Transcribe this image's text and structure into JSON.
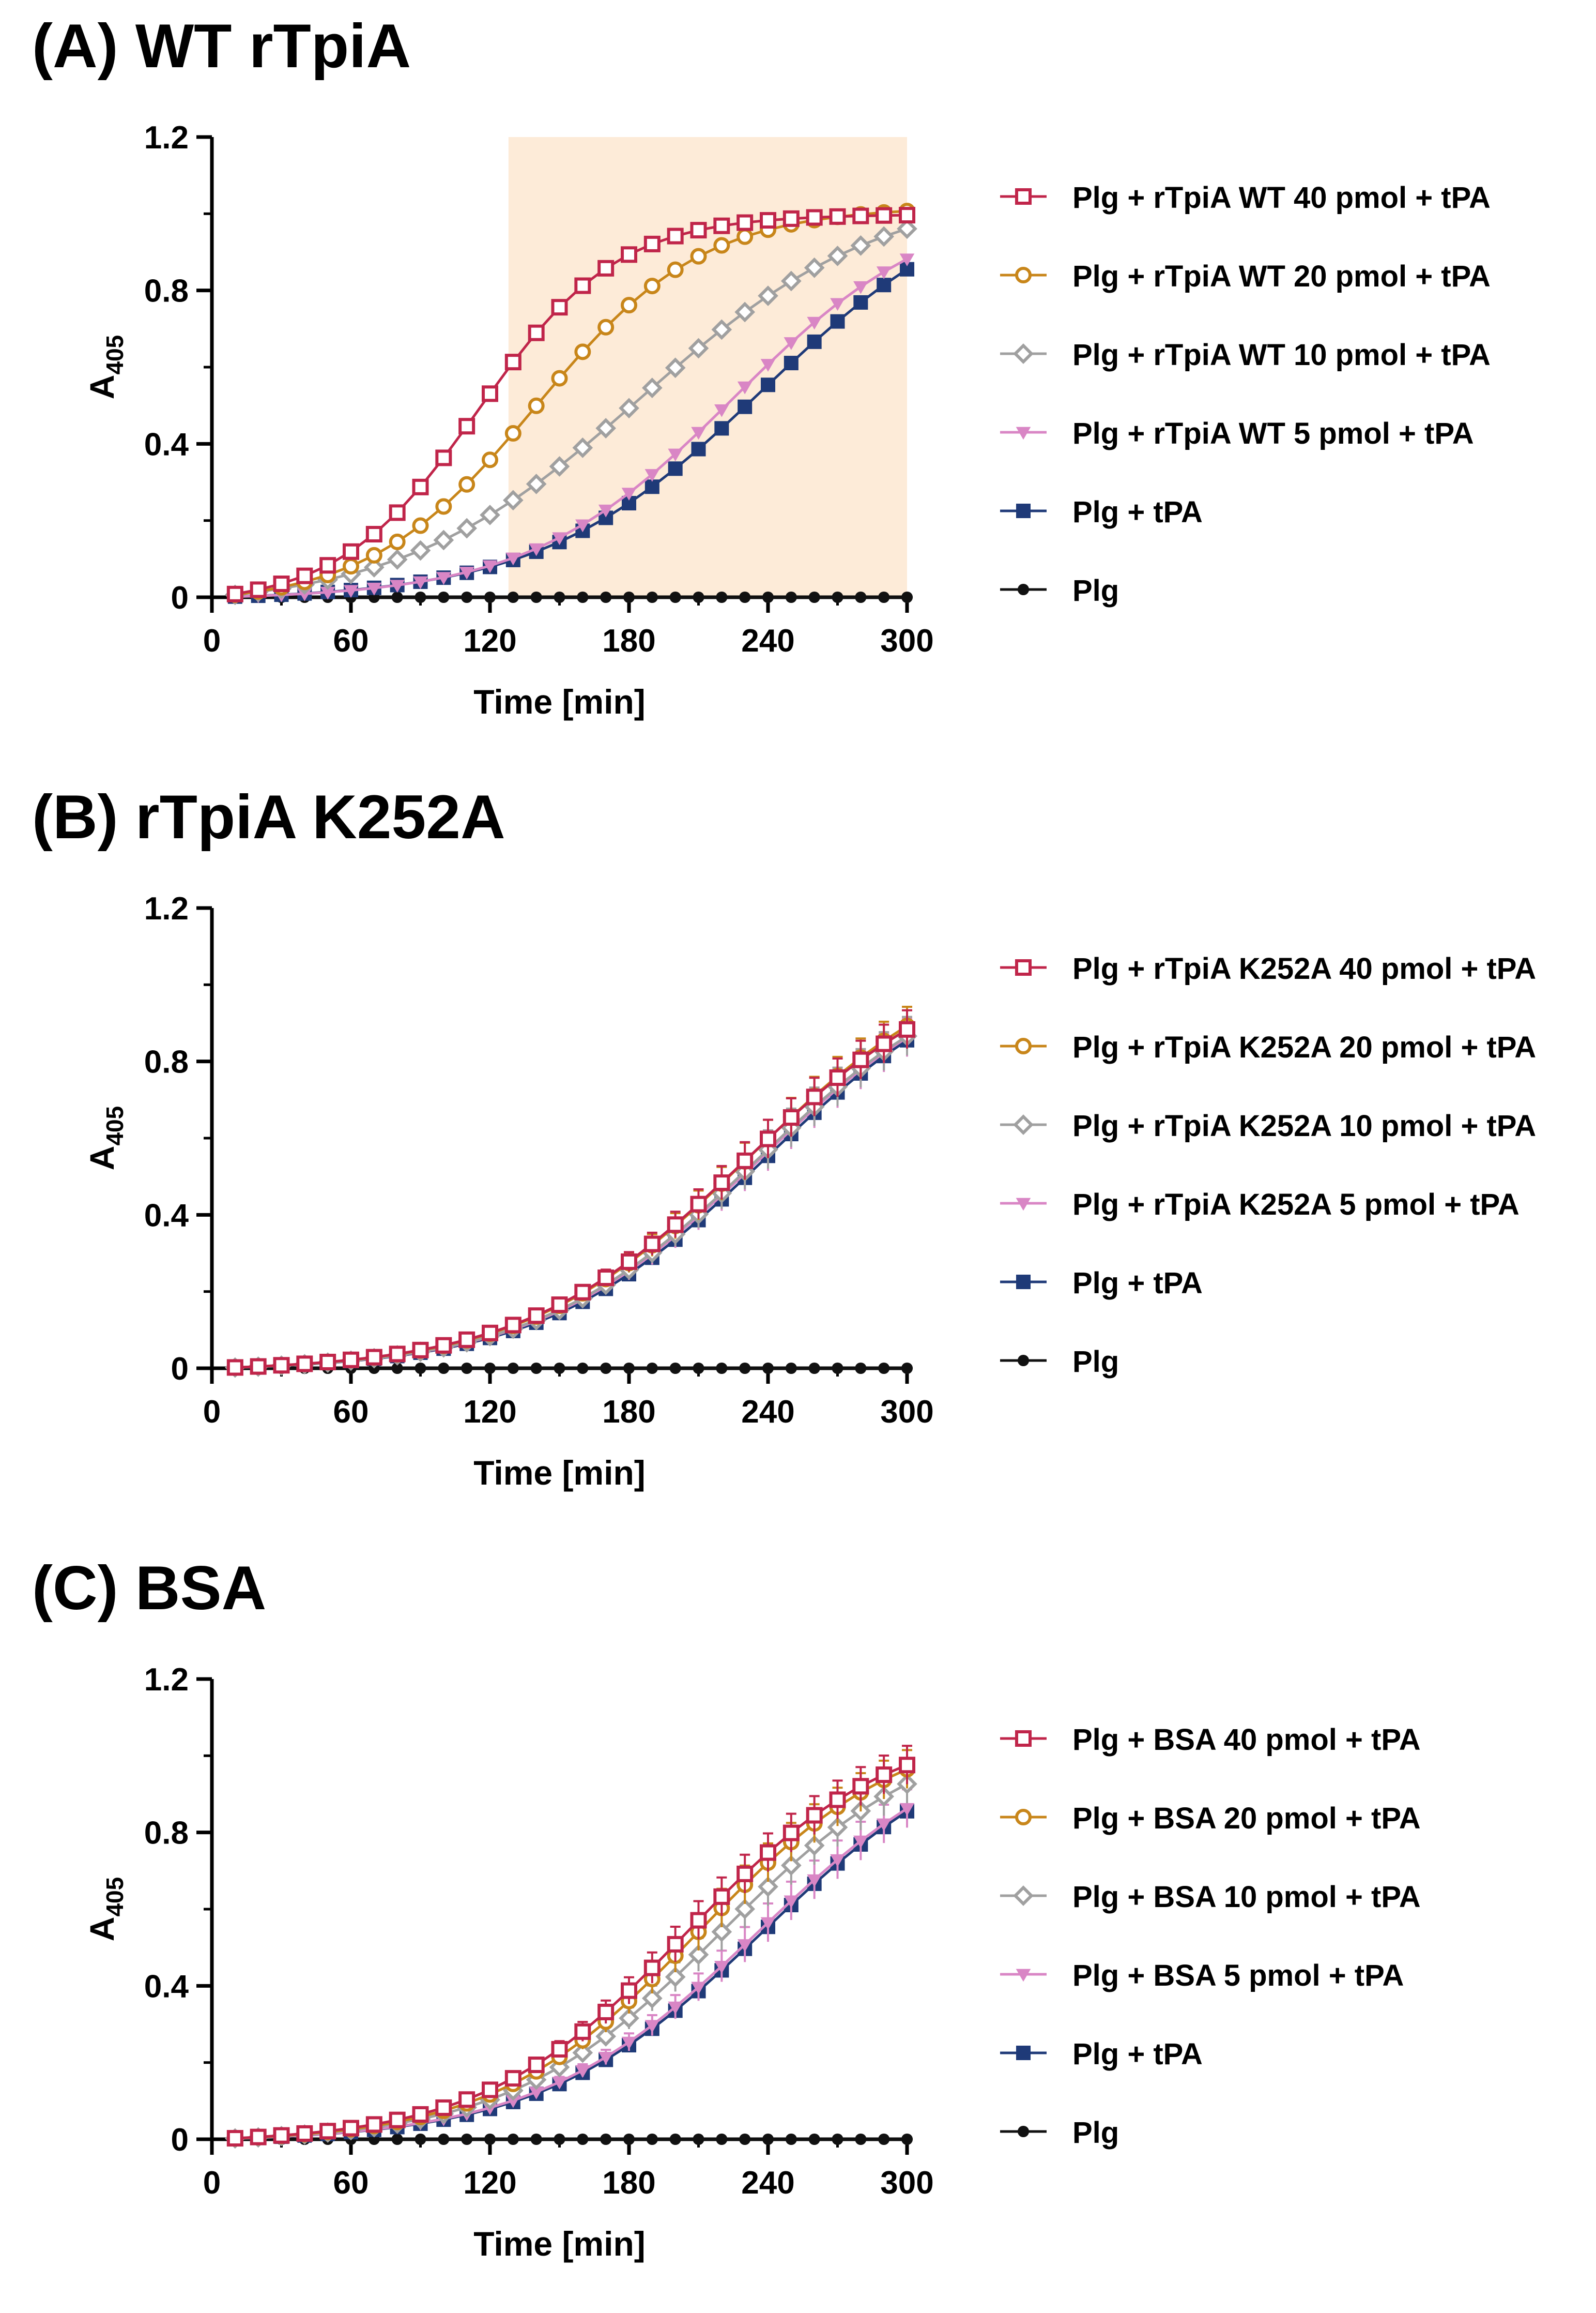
{
  "panels": [
    {
      "title": "(A) WT rTpiA",
      "xlabel": "Time [min]",
      "ylabel": "A",
      "ylabel_sub": "405",
      "highlight_range": [
        128,
        300
      ],
      "highlight_color": "#fdebd8"
    },
    {
      "title": "(B) rTpiA K252A",
      "xlabel": "Time [min]",
      "ylabel": "A",
      "ylabel_sub": "405"
    },
    {
      "title": "(C) BSA",
      "xlabel": "Time [min]",
      "ylabel": "A",
      "ylabel_sub": "405"
    }
  ],
  "chart_data": [
    {
      "type": "line",
      "title": "(A) WT rTpiA",
      "xlabel": "Time [min]",
      "ylabel": "A405",
      "xlim": [
        0,
        300
      ],
      "ylim": [
        0,
        1.2
      ],
      "xticks": [
        0,
        60,
        120,
        180,
        240,
        300
      ],
      "yticks": [
        0,
        0.4,
        0.8,
        1.2
      ],
      "ytick_labels": [
        "0",
        "0.4",
        "0.8",
        "1.2"
      ],
      "legend": "right",
      "series": [
        {
          "name": "Plg + rTpiA WT 40 pmol + tPA",
          "marker": "square-open",
          "color": "#c0254a",
          "midpoint": 115,
          "width": 30,
          "max": 1.02
        },
        {
          "name": "Plg + rTpiA WT 20 pmol + tPA",
          "marker": "circle-open",
          "color": "#c8861a",
          "midpoint": 140,
          "width": 36,
          "max": 1.04
        },
        {
          "name": "Plg + rTpiA WT 10 pmol + tPA",
          "marker": "diamond-open",
          "color": "#a0a0a0",
          "midpoint": 185,
          "width": 52,
          "max": 1.1
        },
        {
          "name": "Plg + rTpiA WT 5 pmol + tPA",
          "marker": "triangle-down",
          "color": "#d986c5",
          "midpoint": 225,
          "width": 44,
          "max": 1.05
        },
        {
          "name": "Plg + tPA",
          "marker": "square",
          "color": "#1f3a78",
          "midpoint": 238,
          "width": 48,
          "max": 1.1
        },
        {
          "name": "Plg",
          "marker": "circle",
          "color": "#111111",
          "midpoint": 0,
          "width": 1,
          "max": 0
        }
      ]
    },
    {
      "type": "line",
      "title": "(B) rTpiA K252A",
      "xlabel": "Time [min]",
      "ylabel": "A405",
      "xlim": [
        0,
        300
      ],
      "ylim": [
        0,
        1.2
      ],
      "xticks": [
        0,
        60,
        120,
        180,
        240,
        300
      ],
      "yticks": [
        0,
        0.4,
        0.8,
        1.2
      ],
      "ytick_labels": [
        "0",
        "0.4",
        "0.8",
        "1.2"
      ],
      "legend": "right",
      "series": [
        {
          "name": "Plg + rTpiA K252A 40 pmol + tPA",
          "marker": "square-open",
          "color": "#c0254a",
          "midpoint": 230,
          "width": 48,
          "max": 1.1,
          "errorbars": true
        },
        {
          "name": "Plg + rTpiA K252A 20 pmol + tPA",
          "marker": "circle-open",
          "color": "#c8861a",
          "midpoint": 232,
          "width": 48,
          "max": 1.12,
          "errorbars": true
        },
        {
          "name": "Plg + rTpiA K252A 10 pmol + tPA",
          "marker": "diamond-open",
          "color": "#a0a0a0",
          "midpoint": 235,
          "width": 48,
          "max": 1.1,
          "errorbars": true
        },
        {
          "name": "Plg + rTpiA K252A 5 pmol + tPA",
          "marker": "triangle-down",
          "color": "#d986c5",
          "midpoint": 236,
          "width": 48,
          "max": 1.1,
          "errorbars": true
        },
        {
          "name": "Plg + tPA",
          "marker": "square",
          "color": "#1f3a78",
          "midpoint": 238,
          "width": 48,
          "max": 1.1
        },
        {
          "name": "Plg",
          "marker": "circle",
          "color": "#111111",
          "midpoint": 0,
          "width": 1,
          "max": 0
        }
      ]
    },
    {
      "type": "line",
      "title": "(C) BSA",
      "xlabel": "Time [min]",
      "ylabel": "A405",
      "xlim": [
        0,
        300
      ],
      "ylim": [
        0,
        1.2
      ],
      "xticks": [
        0,
        60,
        120,
        180,
        240,
        300
      ],
      "yticks": [
        0,
        0.4,
        0.8,
        1.2
      ],
      "ytick_labels": [
        "0",
        "0.4",
        "0.8",
        "1.2"
      ],
      "legend": "right",
      "series": [
        {
          "name": "Plg + BSA 40 pmol + tPA",
          "marker": "square-open",
          "color": "#c0254a",
          "midpoint": 205,
          "width": 44,
          "max": 1.1,
          "errorbars": true
        },
        {
          "name": "Plg + BSA 20 pmol + tPA",
          "marker": "circle-open",
          "color": "#c8861a",
          "midpoint": 210,
          "width": 44,
          "max": 1.1,
          "errorbars": true
        },
        {
          "name": "Plg + BSA 10 pmol + tPA",
          "marker": "diamond-open",
          "color": "#a0a0a0",
          "midpoint": 220,
          "width": 46,
          "max": 1.1,
          "errorbars": true
        },
        {
          "name": "Plg + BSA 5 pmol + tPA",
          "marker": "triangle-down",
          "color": "#d986c5",
          "midpoint": 236,
          "width": 48,
          "max": 1.1,
          "errorbars": true
        },
        {
          "name": "Plg + tPA",
          "marker": "square",
          "color": "#1f3a78",
          "midpoint": 238,
          "width": 48,
          "max": 1.1
        },
        {
          "name": "Plg",
          "marker": "circle",
          "color": "#111111",
          "midpoint": 0,
          "width": 1,
          "max": 0
        }
      ]
    }
  ]
}
